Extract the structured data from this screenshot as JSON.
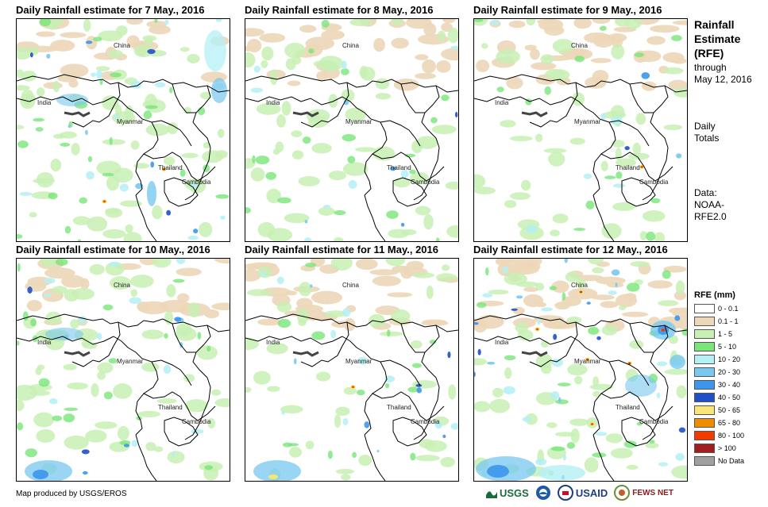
{
  "panels": [
    {
      "title": "Daily Rainfall estimate for 7 May., 2016"
    },
    {
      "title": "Daily Rainfall estimate for 8 May., 2016"
    },
    {
      "title": "Daily Rainfall estimate for 9 May., 2016"
    },
    {
      "title": "Daily Rainfall estimate for 10 May., 2016"
    },
    {
      "title": "Daily Rainfall estimate for 11 May., 2016"
    },
    {
      "title": "Daily Rainfall estimate for 12 May., 2016"
    }
  ],
  "map_labels": {
    "china": "China",
    "india": "India",
    "myanmar": "Myanmar",
    "thailand": "Thailand",
    "cambodia": "Cambodia"
  },
  "sidebar": {
    "title_lines": [
      "Rainfall",
      "Estimate",
      "(RFE)"
    ],
    "through_lines": [
      "through",
      "May 12, 2016"
    ],
    "totals_lines": [
      "Daily",
      "Totals"
    ],
    "data_lines": [
      "Data:",
      "NOAA-",
      "RFE2.0"
    ]
  },
  "legend": {
    "title": "RFE (mm)",
    "items": [
      {
        "label": "0 - 0.1",
        "color": "#ffffff"
      },
      {
        "label": "0.1 - 1",
        "color": "#ecd7b8"
      },
      {
        "label": "1 - 5",
        "color": "#c8f0b4"
      },
      {
        "label": "5 - 10",
        "color": "#78e678"
      },
      {
        "label": "10 - 20",
        "color": "#b4f0f5"
      },
      {
        "label": "20 - 30",
        "color": "#78c8f0"
      },
      {
        "label": "30 - 40",
        "color": "#3c96eb"
      },
      {
        "label": "40 - 50",
        "color": "#2050c8"
      },
      {
        "label": "50 - 65",
        "color": "#fae678"
      },
      {
        "label": "65 - 80",
        "color": "#f08c00"
      },
      {
        "label": "80 - 100",
        "color": "#f03c00"
      },
      {
        "label": "> 100",
        "color": "#a01e1e"
      },
      {
        "label": "No Data",
        "color": "#a0a0a0"
      }
    ]
  },
  "credit": "Map produced by USGS/EROS",
  "logos": {
    "usgs": "USGS",
    "usaid": "USAID",
    "fewsnet": "FEWS NET"
  }
}
